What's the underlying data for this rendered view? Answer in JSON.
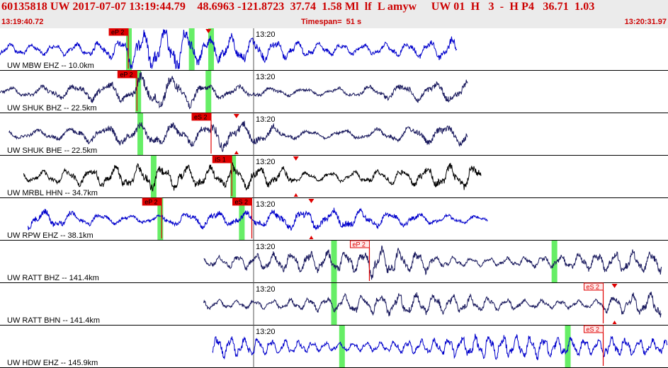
{
  "header": {
    "title": "60135818 UW 2017-07-07 13:19:44.79    48.6963 -121.8723  37.74  1.58 Ml  lf  L amyw     UW 01  H   3  -  H P4   36.71  1.03",
    "start_time": "13:19:40.72",
    "timespan": "Timespan=  51 s",
    "end_time": "13:20:31.97"
  },
  "time_tick_label": "13:20",
  "colors": {
    "trace_blue": "#0000cc",
    "trace_navy": "#1a1a5e",
    "trace_black": "#000000",
    "pick_red": "#e00000",
    "window_green": "#66ee66",
    "ref_line": "#555555"
  },
  "traces": [
    {
      "label": "UW MBW EHZ -- 10.0km",
      "color": "blue",
      "start": 0.0,
      "end": 0.684,
      "amp": 0.42,
      "freq": 130,
      "picks": [
        {
          "text": "eP 2",
          "pos": 0.192,
          "style": "filled"
        }
      ],
      "windows": [
        0.193,
        0.287,
        0.316
      ],
      "arrows_top": [
        0.312
      ],
      "arrows_bottom": []
    },
    {
      "label": "UW SHUK BHZ -- 22.5km",
      "color": "navy",
      "start": 0.0,
      "end": 0.7,
      "amp": 0.3,
      "freq": 90,
      "picks": [
        {
          "text": "eP 2",
          "pos": 0.205,
          "style": "filled"
        }
      ],
      "windows": [
        0.207,
        0.312
      ],
      "arrows_top": [],
      "arrows_bottom": []
    },
    {
      "label": "UW SHUK BHE -- 22.5km",
      "color": "navy",
      "start": 0.013,
      "end": 0.7,
      "amp": 0.32,
      "freq": 85,
      "picks": [
        {
          "text": "eS 2",
          "pos": 0.316,
          "style": "filled"
        }
      ],
      "windows": [
        0.21
      ],
      "arrows_top": [
        0.354
      ],
      "arrows_bottom": [
        0.354
      ]
    },
    {
      "label": "UW MRBL HHN -- 34.7km",
      "color": "black",
      "start": 0.035,
      "end": 0.72,
      "amp": 0.36,
      "freq": 120,
      "picks": [
        {
          "text": "iS 1",
          "pos": 0.347,
          "style": "filled"
        }
      ],
      "windows": [
        0.23,
        0.349
      ],
      "arrows_top": [
        0.443
      ],
      "arrows_bottom": [
        0.443
      ]
    },
    {
      "label": "UW RPW EHZ -- 38.1km",
      "color": "blue",
      "start": 0.042,
      "end": 0.73,
      "amp": 0.3,
      "freq": 100,
      "picks": [
        {
          "text": "eP 2",
          "pos": 0.242,
          "style": "filled"
        },
        {
          "text": "eS 2",
          "pos": 0.377,
          "style": "filled"
        }
      ],
      "windows": [
        0.24,
        0.362
      ],
      "arrows_top": [
        0.466
      ],
      "arrows_bottom": [
        0.466
      ]
    },
    {
      "label": "UW RATT BHZ -- 141.4km",
      "color": "navy",
      "start": 0.305,
      "end": 0.99,
      "amp": 0.32,
      "freq": 160,
      "picks": [
        {
          "text": "eP 2",
          "pos": 0.553,
          "style": "outline"
        }
      ],
      "windows": [
        0.5,
        0.83
      ],
      "arrows_top": [],
      "arrows_bottom": []
    },
    {
      "label": "UW RATT BHN -- 141.4km",
      "color": "navy",
      "start": 0.305,
      "end": 0.99,
      "amp": 0.32,
      "freq": 160,
      "picks": [
        {
          "text": "eS 2",
          "pos": 0.903,
          "style": "outline"
        }
      ],
      "windows": [
        0.5
      ],
      "arrows_top": [
        0.92
      ],
      "arrows_bottom": [
        0.92
      ]
    },
    {
      "label": "UW HDW EHZ -- 145.9km",
      "color": "blue",
      "start": 0.318,
      "end": 0.999,
      "amp": 0.34,
      "freq": 210,
      "picks": [
        {
          "text": "eS 2",
          "pos": 0.903,
          "style": "outline"
        }
      ],
      "windows": [
        0.512,
        0.85
      ],
      "arrows_top": [],
      "arrows_bottom": []
    }
  ]
}
